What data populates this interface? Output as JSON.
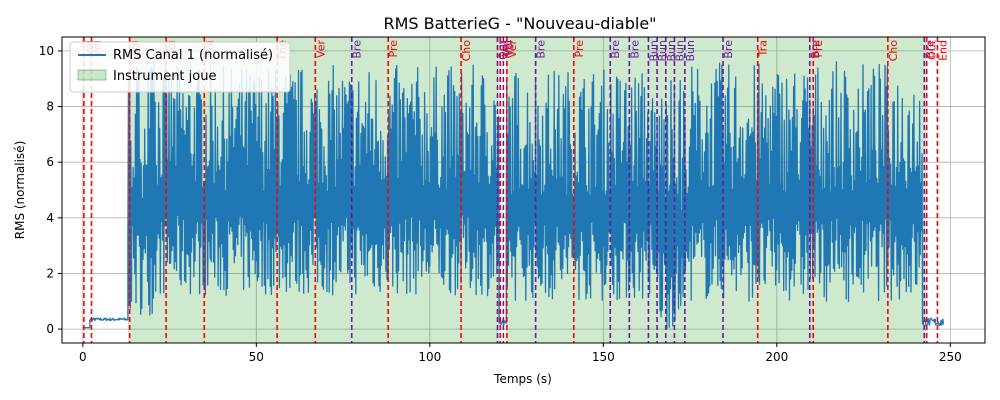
{
  "chart_data": {
    "type": "line",
    "title": "RMS BatterieG - \"Nouveau-diable\"",
    "xlabel": "Temps (s)",
    "ylabel": "RMS (normalisé)",
    "xlim": [
      -6,
      260
    ],
    "ylim": [
      -0.5,
      10.5
    ],
    "xticks": [
      0,
      50,
      100,
      150,
      200,
      250
    ],
    "yticks": [
      0,
      2,
      4,
      6,
      8,
      10
    ],
    "grid": true,
    "legend_position": "top-left",
    "legend": [
      {
        "label": "RMS Canal 1 (normalisé)",
        "kind": "line"
      },
      {
        "label": "Instrument joue",
        "kind": "patch"
      }
    ],
    "colors": {
      "line": "#1f77b4",
      "band": "#2ca02c",
      "marker_red": "#ff0000",
      "marker_purple": "#6a1b9a"
    },
    "series": [
      {
        "name": "RMS Canal 1 (normalisé)",
        "segments": [
          {
            "x": [
              0,
              2
            ],
            "y": [
              0.05,
              0.05
            ]
          },
          {
            "x": [
              2,
              13
            ],
            "y": [
              0.3,
              0.4
            ]
          },
          {
            "x": [
              13,
              21
            ],
            "y": [
              0.5,
              9.8
            ]
          },
          {
            "x": [
              21,
              120
            ],
            "y": [
              1.2,
              9.5
            ]
          },
          {
            "x": [
              120,
              122
            ],
            "y": [
              0.1,
              0.3
            ]
          },
          {
            "x": [
              122,
              164
            ],
            "y": [
              1.0,
              9.4
            ]
          },
          {
            "x": [
              164,
              174
            ],
            "y": [
              0.0,
              9.0
            ]
          },
          {
            "x": [
              174,
              242
            ],
            "y": [
              1.0,
              9.6
            ]
          },
          {
            "x": [
              242,
              248
            ],
            "y": [
              0.1,
              0.4
            ]
          }
        ]
      }
    ],
    "bands": [
      {
        "label": "Instrument joue",
        "x": [
          13,
          120
        ]
      },
      {
        "label": "Instrument joue",
        "x": [
          122,
          243
        ]
      }
    ],
    "markers": [
      {
        "x": 0.3,
        "label": "Voi",
        "color": "red"
      },
      {
        "x": 2.5,
        "label": "Voi",
        "color": "red"
      },
      {
        "x": 13.5,
        "label": "Voi",
        "color": "red"
      },
      {
        "x": 24,
        "label": "Voi",
        "color": "red"
      },
      {
        "x": 35,
        "label": "Voi",
        "color": "red"
      },
      {
        "x": 56,
        "label": "The",
        "color": "red"
      },
      {
        "x": 67,
        "label": "Ver",
        "color": "red"
      },
      {
        "x": 77.5,
        "label": "Bre",
        "color": "purple"
      },
      {
        "x": 88,
        "label": "Pre",
        "color": "red"
      },
      {
        "x": 109,
        "label": "Cho",
        "color": "red"
      },
      {
        "x": 119.5,
        "label": "Out",
        "color": "purple"
      },
      {
        "x": 120.3,
        "label": "Voi",
        "color": "red"
      },
      {
        "x": 121.2,
        "label": "Voi",
        "color": "purple"
      },
      {
        "x": 122.2,
        "label": "Ver",
        "color": "red"
      },
      {
        "x": 130.5,
        "label": "Bre",
        "color": "purple"
      },
      {
        "x": 141.5,
        "label": "Pre",
        "color": "red"
      },
      {
        "x": 152,
        "label": "Bre",
        "color": "purple"
      },
      {
        "x": 157.5,
        "label": "Bre",
        "color": "purple"
      },
      {
        "x": 163,
        "label": "Bun",
        "color": "purple"
      },
      {
        "x": 165.5,
        "label": "Bun",
        "color": "purple"
      },
      {
        "x": 168,
        "label": "Bun",
        "color": "purple"
      },
      {
        "x": 170.5,
        "label": "Bun",
        "color": "purple"
      },
      {
        "x": 173.5,
        "label": "Bun",
        "color": "purple"
      },
      {
        "x": 184.5,
        "label": "Bre",
        "color": "purple"
      },
      {
        "x": 194.5,
        "label": "Tra",
        "color": "red"
      },
      {
        "x": 209.5,
        "label": "Bre",
        "color": "purple"
      },
      {
        "x": 210.5,
        "label": "Pre",
        "color": "red"
      },
      {
        "x": 232,
        "label": "Cho",
        "color": "red"
      },
      {
        "x": 242.5,
        "label": "Bre",
        "color": "purple"
      },
      {
        "x": 243.2,
        "label": "Out",
        "color": "red"
      },
      {
        "x": 246.3,
        "label": "End",
        "color": "red"
      }
    ]
  }
}
